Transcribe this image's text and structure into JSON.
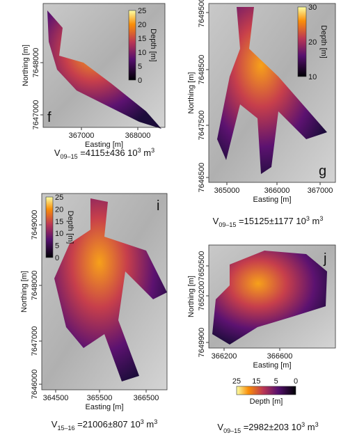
{
  "panels": [
    {
      "letter": "f",
      "x_label": "Easting [m]",
      "y_label": "Northing [m]",
      "x_ticks": [
        "367000",
        "368000"
      ],
      "y_ticks": [
        "7648000",
        "7647000"
      ],
      "colorbar": {
        "label": "Depth [m]",
        "ticks": [
          "25",
          "20",
          "15",
          "10",
          "5",
          "0"
        ]
      },
      "caption": {
        "symbol": "V",
        "subscript": "09–15",
        "text": " =4115±436 10",
        "exponent": "3",
        "unit": " m",
        "unit_exponent": "3"
      }
    },
    {
      "letter": "g",
      "x_label": "Easting [m]",
      "y_label": "Northing [m]",
      "x_ticks": [
        "365000",
        "366000",
        "367000"
      ],
      "y_ticks": [
        "7649500",
        "7648500",
        "7647500",
        "7646500"
      ],
      "colorbar": {
        "label": "Depth [m]",
        "ticks": [
          "30",
          "20",
          "10"
        ]
      },
      "caption": {
        "symbol": "V",
        "subscript": "09–15",
        "text": " =15125±1177 10",
        "exponent": "3",
        "unit": " m",
        "unit_exponent": "3"
      }
    },
    {
      "letter": "i",
      "x_label": "Easting [m]",
      "y_label": "Northing [m]",
      "x_ticks": [
        "364500",
        "365500",
        "366500"
      ],
      "y_ticks": [
        "7649000",
        "7648000",
        "7647000",
        "7646000"
      ],
      "colorbar": {
        "label": "Depth [m]",
        "ticks": [
          "25",
          "20",
          "15",
          "10",
          "5",
          "0"
        ]
      },
      "caption": {
        "symbol": "V",
        "subscript": "15–16",
        "text": " =21006±807 10",
        "exponent": "3",
        "unit": " m",
        "unit_exponent": "3"
      }
    },
    {
      "letter": "j",
      "x_label": "Easting [m]",
      "y_label": "Northing [m]",
      "x_ticks": [
        "366200",
        "366600"
      ],
      "y_ticks": [
        "7650500",
        "7650200",
        "7649900"
      ],
      "colorbar": {
        "label": "Depth [m]",
        "ticks": [
          "25",
          "15",
          "5",
          "0"
        ]
      },
      "caption": {
        "symbol": "V",
        "subscript": "09–15",
        "text": " =2982±203 10",
        "exponent": "3",
        "unit": " m",
        "unit_exponent": "3"
      }
    }
  ]
}
